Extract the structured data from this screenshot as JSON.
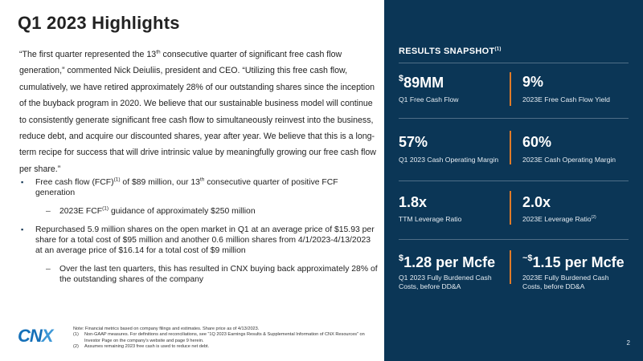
{
  "title": "Q1 2023 Highlights",
  "quote": {
    "p1": "“The first quarter represented the 13",
    "p1_sup": "th",
    "p2": " consecutive quarter of significant free cash flow generation,” commented Nick Deiuliis, president and CEO. “Utilizing this free cash flow, cumulatively, we have retired approximately 28% of our outstanding shares since the inception of the buyback program in 2020. We believe that our sustainable business model will continue to consistently generate significant free cash flow to simultaneously reinvest into the business, reduce debt, and acquire our discounted shares, year after year. We believe that this is a long-term recipe for success that will drive intrinsic value by meaningfully growing our free cash flow per share.”"
  },
  "bullets": {
    "b1": {
      "a": "Free cash flow (FCF)",
      "a_sup": "(1)",
      "b": " of $89 million, our 13",
      "b_sup": "th",
      "c": " consecutive quarter of positive FCF generation"
    },
    "b1_sub": {
      "a": "2023E FCF",
      "a_sup": "(1)",
      "b": " guidance of approximately $250 million"
    },
    "b2": "Repurchased 5.9 million shares on the open market in Q1 at an average price of $15.93 per share for a total cost of $95 million and another 0.6 million shares from 4/1/2023-4/13/2023 at an average price of $16.14 for a total cost of $9 million",
    "b2_sub": "Over the last ten quarters, this has resulted in CNX buying back approximately 28% of the outstanding shares of the company"
  },
  "bullet_marks": {
    "square": "▪",
    "dash": "–"
  },
  "logo": {
    "a": "CN",
    "b": "X"
  },
  "notes": {
    "lead": "Note: Financial metrics based on company filings and estimates. Share price as of 4/13/2023.",
    "n1": "(1)",
    "t1": "Non-GAAP measures. For definitions and reconciliations, see “1Q 2023 Earnings Results & Supplemental Information of CNX Resources” on Investor Page on the company’s website and page 9 herein.",
    "n2": "(2)",
    "t2": "Assumes remaining 2023 free cash is used to reduce net debt."
  },
  "snapshot": {
    "title": "RESULTS SNAPSHOT",
    "title_sup": "(1)",
    "r1": {
      "lv_pre": "$",
      "lv": "89MM",
      "ll": "Q1 Free Cash Flow",
      "rv": "9%",
      "rl": "2023E Free Cash Flow Yield"
    },
    "r2": {
      "lv": "57%",
      "ll": "Q1 2023 Cash Operating Margin",
      "rv": "60%",
      "rl": "2023E Cash Operating Margin"
    },
    "r3": {
      "lv": "1.8x",
      "ll": "TTM Leverage Ratio",
      "rv": "2.0x",
      "rl": "2023E Leverage Ratio",
      "rl_sup": "(2)"
    },
    "r4": {
      "lv_pre": "$",
      "lv": "1.28 per Mcfe",
      "ll": "Q1 2023 Fully Burdened Cash Costs, before DD&A",
      "rv_pre": "~$",
      "rv": "1.15 per Mcfe",
      "rl": "2023E Fully Burdened Cash Costs, before DD&A"
    }
  },
  "page_number": "2",
  "colors": {
    "panel": "#0b3656",
    "accent": "#e07b28",
    "logo": "#1570b8"
  }
}
